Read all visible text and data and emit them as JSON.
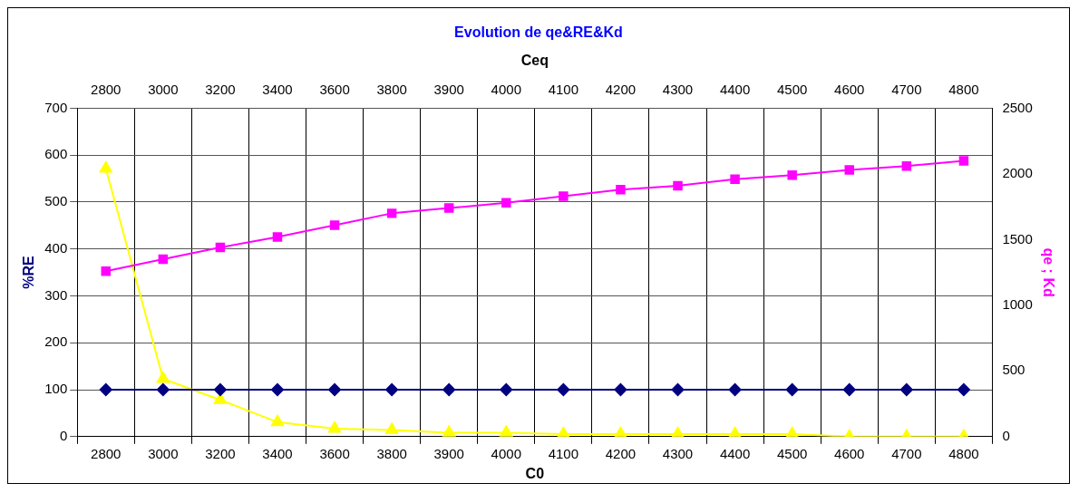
{
  "chart_data": {
    "type": "line",
    "title": "Evolution de qe&RE&Kd",
    "xlabel": "C0",
    "x2label": "Ceq",
    "ylabel": "%RE",
    "y2label": "qe ; Kd",
    "categories": [
      "2800",
      "3000",
      "3200",
      "3400",
      "3600",
      "3800",
      "3900",
      "4000",
      "4100",
      "4200",
      "4300",
      "4400",
      "4500",
      "4600",
      "4700",
      "4800"
    ],
    "series": [
      {
        "color": "#000080",
        "marker": "diamond",
        "values": [
          100,
          100,
          100,
          100,
          100,
          100,
          100,
          100,
          100,
          100,
          100,
          100,
          100,
          100,
          100,
          100
        ]
      },
      {
        "color": "#ff00ff",
        "marker": "square",
        "axis": "y2",
        "values": [
          1260,
          1350,
          1440,
          1520,
          1610,
          1700,
          1740,
          1780,
          1830,
          1880,
          1910,
          1960,
          1990,
          2030,
          2060,
          2100
        ]
      },
      {
        "color": "#ffff00",
        "marker": "triangle",
        "axis": "y2",
        "values": [
          2040,
          440,
          280,
          110,
          60,
          50,
          30,
          30,
          20,
          20,
          20,
          20,
          20,
          0,
          0,
          0
        ]
      }
    ],
    "ylim": [
      0,
      700
    ],
    "yticks": [
      0,
      100,
      200,
      300,
      400,
      500,
      600,
      700
    ],
    "y2lim": [
      0,
      2500
    ],
    "y2ticks": [
      0,
      500,
      1000,
      1500,
      2000,
      2500
    ],
    "grid": true,
    "legend": false
  }
}
